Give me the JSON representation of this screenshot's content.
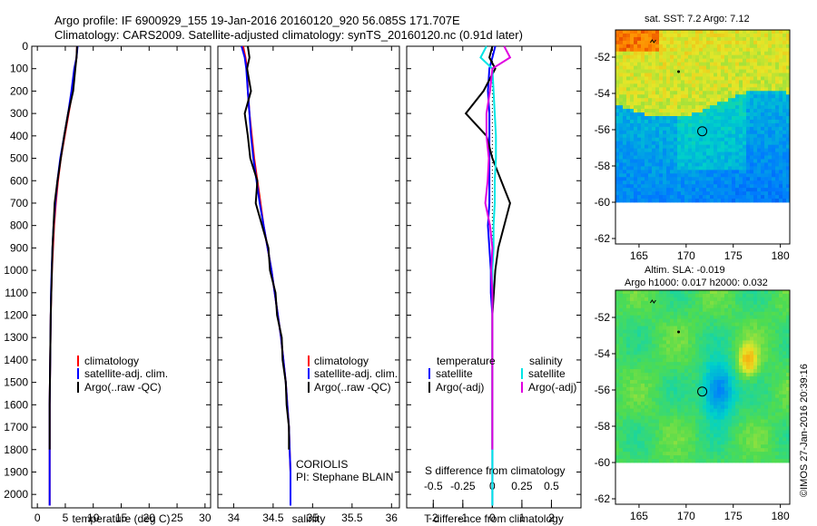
{
  "header": {
    "line1": "Argo profile: IF 6900929_155 19-Jan-2016 20160120_920 56.085S 171.707E",
    "line2": "Climatology: CARS2009. Satellite-adjusted climatology: synTS_20160120.nc (0.91d later)"
  },
  "colors": {
    "climatology": "#ff0000",
    "satellite": "#0000ff",
    "argo": "#000000",
    "sat_salinity": "#00e5e5",
    "argo_salinity": "#e000e0"
  },
  "legend": {
    "climatology": "climatology",
    "satellite_adj": "satellite-adj. clim.",
    "argo_raw": "Argo(..raw -QC)",
    "temperature": "temperature",
    "salinity": "salinity",
    "satellite": "satellite",
    "argo_adj": "Argo(-adj)"
  },
  "annotations": {
    "institution": "CORIOLIS",
    "pi": "PI: Stephane BLAIN",
    "s_diff": "S difference from climatology",
    "copyright": "©IMOS 27-Jan-2016 20:39:16"
  },
  "maps": {
    "sst_title": "sat. SST: 7.2 Argo: 7.12",
    "sla_title1": "Altim. SLA: -0.019",
    "sla_title2": "Argo h1000: 0.017 h2000: 0.032",
    "icon": "ocean-field-map",
    "float_position": {
      "lon": 171.707,
      "lat": -56.085
    }
  },
  "chart_data": [
    {
      "type": "line",
      "name": "temperature-profile",
      "xlabel": "temperature (deg C)",
      "ylabel": "",
      "xlim": [
        -1,
        31
      ],
      "ylim": [
        2060,
        0
      ],
      "xticks": [
        0,
        5,
        10,
        15,
        20,
        25,
        30
      ],
      "yticks": [
        0,
        100,
        200,
        300,
        400,
        500,
        600,
        700,
        800,
        900,
        1000,
        1100,
        1200,
        1300,
        1400,
        1500,
        1600,
        1700,
        1800,
        1900,
        2000
      ],
      "series": [
        {
          "name": "climatology",
          "color": "#ff0000",
          "x": [
            7.1,
            7.0,
            6.7,
            6.3,
            5.6,
            4.9,
            4.2,
            3.7,
            3.3,
            3.0,
            2.8,
            2.6,
            2.5,
            2.4,
            2.35,
            2.3,
            2.25,
            2.2,
            2.2,
            2.2,
            2.2,
            2.2
          ],
          "y": [
            0,
            50,
            100,
            200,
            300,
            400,
            500,
            600,
            700,
            800,
            900,
            1000,
            1100,
            1200,
            1300,
            1400,
            1500,
            1600,
            1700,
            1800,
            1900,
            2050
          ]
        },
        {
          "name": "satellite-adj. clim.",
          "color": "#0000ff",
          "x": [
            7.2,
            7.0,
            6.6,
            6.1,
            5.5,
            4.8,
            4.1,
            3.6,
            3.2,
            2.9,
            2.7,
            2.55,
            2.45,
            2.4,
            2.35,
            2.3,
            2.25,
            2.2,
            2.2,
            2.2,
            2.2,
            2.2
          ],
          "y": [
            0,
            50,
            100,
            200,
            300,
            400,
            500,
            600,
            700,
            800,
            900,
            1000,
            1100,
            1200,
            1300,
            1400,
            1500,
            1600,
            1700,
            1800,
            1900,
            2050
          ]
        },
        {
          "name": "Argo(..raw -QC)",
          "color": "#000000",
          "x": [
            7.1,
            7.0,
            6.8,
            6.4,
            5.5,
            4.8,
            4.2,
            3.6,
            3.1,
            2.9,
            2.7,
            2.6,
            2.5,
            2.4,
            2.35,
            2.3,
            2.25,
            2.2,
            2.2,
            2.2
          ],
          "y": [
            0,
            50,
            100,
            200,
            300,
            400,
            500,
            600,
            700,
            800,
            900,
            1000,
            1100,
            1200,
            1300,
            1400,
            1500,
            1600,
            1700,
            1800
          ]
        }
      ]
    },
    {
      "type": "line",
      "name": "salinity-profile",
      "xlabel": "salinity",
      "xlim": [
        33.8,
        36.1
      ],
      "ylim": [
        2060,
        0
      ],
      "xticks": [
        34,
        34.5,
        35,
        35.5,
        36
      ],
      "series": [
        {
          "name": "climatology",
          "color": "#ff0000",
          "x": [
            34.12,
            34.15,
            34.17,
            34.18,
            34.2,
            34.23,
            34.26,
            34.3,
            34.34,
            34.38,
            34.43,
            34.48,
            34.52,
            34.56,
            34.6,
            34.63,
            34.66,
            34.68,
            34.7,
            34.71,
            34.72,
            34.72
          ],
          "y": [
            0,
            50,
            100,
            200,
            300,
            400,
            500,
            600,
            700,
            800,
            900,
            1000,
            1100,
            1200,
            1300,
            1400,
            1500,
            1600,
            1700,
            1800,
            1900,
            2050
          ]
        },
        {
          "name": "satellite-adj. clim.",
          "color": "#0000ff",
          "x": [
            34.1,
            34.14,
            34.16,
            34.18,
            34.2,
            34.22,
            34.25,
            34.29,
            34.33,
            34.38,
            34.43,
            34.48,
            34.52,
            34.56,
            34.6,
            34.63,
            34.66,
            34.68,
            34.7,
            34.71,
            34.72,
            34.72
          ],
          "y": [
            0,
            50,
            100,
            200,
            300,
            400,
            500,
            600,
            700,
            800,
            900,
            1000,
            1100,
            1200,
            1300,
            1400,
            1500,
            1600,
            1700,
            1800,
            1900,
            2050
          ]
        },
        {
          "name": "Argo(..raw -QC)",
          "color": "#000000",
          "x": [
            34.18,
            34.2,
            34.17,
            34.22,
            34.14,
            34.18,
            34.21,
            34.3,
            34.28,
            34.36,
            34.44,
            34.46,
            34.53,
            34.55,
            34.61,
            34.62,
            34.66,
            34.67,
            34.7,
            34.7
          ],
          "y": [
            0,
            50,
            100,
            200,
            300,
            400,
            500,
            600,
            700,
            800,
            900,
            1000,
            1100,
            1200,
            1300,
            1400,
            1500,
            1600,
            1700,
            1800
          ]
        }
      ]
    },
    {
      "type": "line",
      "name": "difference-profile",
      "xlabel": "T difference from climatology",
      "x2label": "S difference from climatology",
      "xlim": [
        -2.9,
        3.0
      ],
      "x2lim": [
        -0.725,
        0.75
      ],
      "ylim": [
        2060,
        0
      ],
      "xticks": [
        -2,
        -1,
        0,
        1,
        2
      ],
      "x2ticks": [
        -0.5,
        -0.25,
        0,
        0.25,
        0.5
      ],
      "series": [
        {
          "name": "temperature satellite",
          "color": "#0000ff",
          "x": [
            0.1,
            0.0,
            -0.1,
            -0.15,
            -0.1,
            -0.1,
            -0.1,
            -0.1,
            -0.1,
            -0.15,
            -0.1,
            -0.05,
            -0.05,
            0,
            0,
            0,
            0,
            0,
            0,
            0,
            0,
            0
          ],
          "y": [
            0,
            50,
            100,
            200,
            300,
            400,
            500,
            600,
            700,
            800,
            900,
            1000,
            1100,
            1200,
            1300,
            1400,
            1500,
            1600,
            1700,
            1800,
            1900,
            2050
          ]
        },
        {
          "name": "temperature Argo(-adj)",
          "color": "#000000",
          "x": [
            0.0,
            -0.1,
            0.1,
            -0.3,
            -0.9,
            -0.2,
            0.0,
            0.3,
            0.6,
            0.4,
            0.2,
            0.1,
            0.05,
            0,
            0,
            0,
            0,
            0,
            0,
            0
          ],
          "y": [
            0,
            50,
            100,
            200,
            300,
            400,
            500,
            600,
            700,
            800,
            900,
            1000,
            1100,
            1200,
            1300,
            1400,
            1500,
            1600,
            1700,
            1800
          ]
        },
        {
          "name": "salinity satellite",
          "color": "#00e5e5",
          "x2": [
            -0.05,
            -0.1,
            0.0,
            0.01,
            0.02,
            0.03,
            0.03,
            0.02,
            0.02,
            0.01,
            0.01,
            0.0,
            0.0,
            0,
            0,
            0,
            0,
            0,
            0,
            0,
            0,
            0
          ],
          "y": [
            0,
            50,
            100,
            200,
            300,
            400,
            500,
            600,
            700,
            800,
            900,
            1000,
            1100,
            1200,
            1300,
            1400,
            1500,
            1600,
            1700,
            1800,
            1900,
            2050
          ]
        },
        {
          "name": "salinity Argo(-adj)",
          "color": "#e000e0",
          "x2": [
            0.1,
            0.15,
            0.0,
            -0.02,
            -0.05,
            -0.05,
            -0.03,
            -0.04,
            -0.06,
            -0.02,
            0.0,
            -0.01,
            0.0,
            0,
            0,
            0,
            0,
            0,
            0,
            0
          ],
          "y": [
            0,
            50,
            100,
            200,
            300,
            400,
            500,
            600,
            700,
            800,
            900,
            1000,
            1100,
            1200,
            1300,
            1400,
            1500,
            1600,
            1700,
            1800
          ]
        }
      ]
    },
    {
      "type": "heatmap",
      "name": "sst-map",
      "title": "sat. SST: 7.2 Argo: 7.12",
      "xlim": [
        162.5,
        181
      ],
      "ylim": [
        -62.3,
        -50.5
      ],
      "xticks": [
        165,
        170,
        175,
        180
      ],
      "yticks": [
        -52,
        -54,
        -56,
        -58,
        -60,
        -62
      ]
    },
    {
      "type": "heatmap",
      "name": "sla-map",
      "title": "Altim. SLA: -0.019",
      "xlim": [
        162.5,
        181
      ],
      "ylim": [
        -62.3,
        -50.5
      ],
      "xticks": [
        165,
        170,
        175,
        180
      ],
      "yticks": [
        -52,
        -54,
        -56,
        -58,
        -60,
        -62
      ]
    }
  ]
}
